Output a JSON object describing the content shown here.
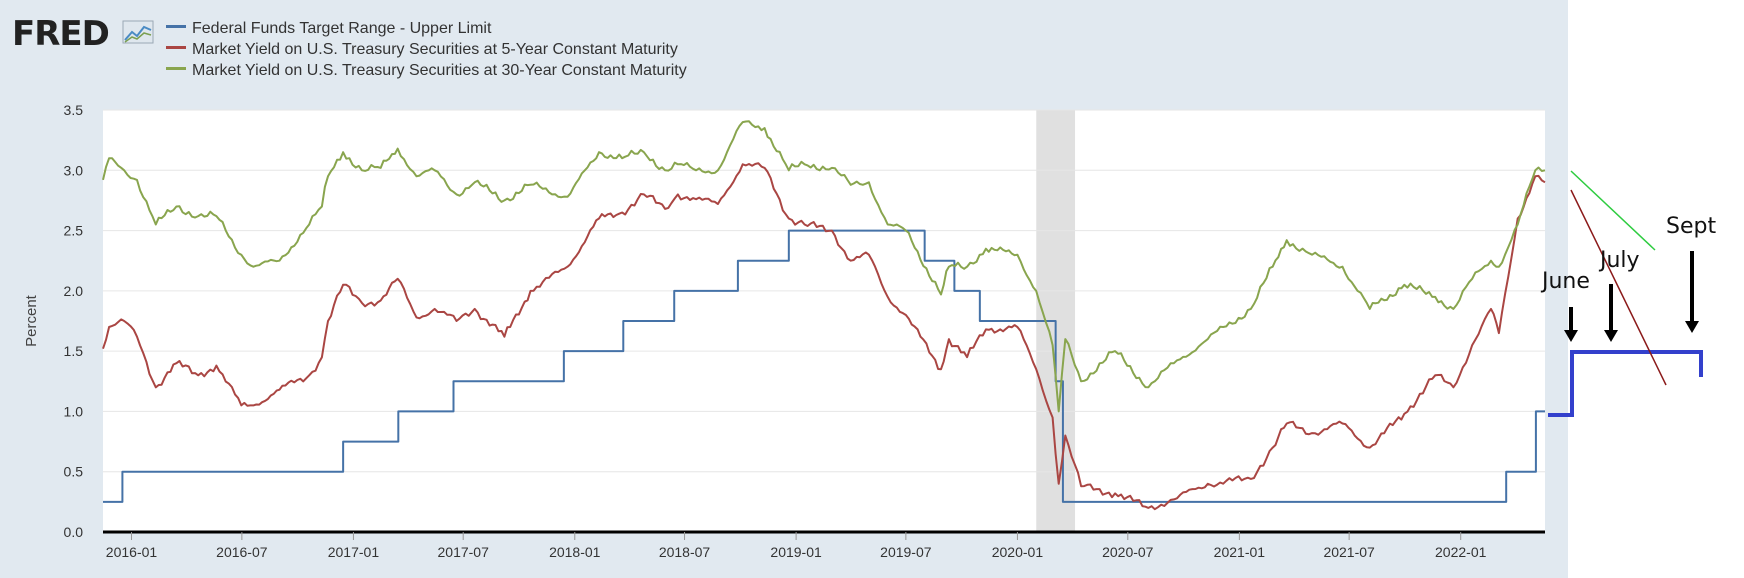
{
  "logo": {
    "text": "FRED",
    "mark": "chart-line-icon"
  },
  "colors": {
    "fed_funds": "#4572a7",
    "yield_5y": "#aa4643",
    "yield_30y": "#89a54e",
    "recession": "#e0e0e0",
    "annotation_blue": "#3340cc"
  },
  "chart_data": {
    "type": "line",
    "title": "",
    "ylabel": "Percent",
    "xlabel": "",
    "ylim": [
      0.0,
      3.5
    ],
    "xlim": [
      "2015-11-15",
      "2022-05-20"
    ],
    "y_ticks": [
      "0.0",
      "0.5",
      "1.0",
      "1.5",
      "2.0",
      "2.5",
      "3.0",
      "3.5"
    ],
    "x_ticks": [
      "2016-01",
      "2016-07",
      "2017-01",
      "2017-07",
      "2018-01",
      "2018-07",
      "2019-01",
      "2019-07",
      "2020-01",
      "2020-07",
      "2021-01",
      "2021-07",
      "2022-01"
    ],
    "recession": {
      "start": "2020-02-01",
      "end": "2020-04-05"
    },
    "grid": true,
    "legend_position": "top-left",
    "series": [
      {
        "name": "Federal Funds Target Range - Upper Limit",
        "step": true,
        "points": [
          [
            "2015-11-15",
            0.25
          ],
          [
            "2015-12-17",
            0.5
          ],
          [
            "2016-12-15",
            0.75
          ],
          [
            "2017-03-16",
            1.0
          ],
          [
            "2017-06-15",
            1.25
          ],
          [
            "2017-12-14",
            1.5
          ],
          [
            "2018-03-22",
            1.75
          ],
          [
            "2018-06-14",
            2.0
          ],
          [
            "2018-09-27",
            2.25
          ],
          [
            "2018-12-20",
            2.5
          ],
          [
            "2019-08-01",
            2.25
          ],
          [
            "2019-09-19",
            2.0
          ],
          [
            "2019-10-31",
            1.75
          ],
          [
            "2020-03-04",
            1.25
          ],
          [
            "2020-03-16",
            0.25
          ],
          [
            "2022-03-17",
            0.5
          ],
          [
            "2022-05-05",
            1.0
          ],
          [
            "2022-05-20",
            1.0
          ]
        ]
      },
      {
        "name": "Market Yield on U.S. Treasury Securities at 5-Year Constant Maturity",
        "points": [
          [
            "2015-11-15",
            1.52
          ],
          [
            "2015-11-25",
            1.7
          ],
          [
            "2015-12-20",
            1.75
          ],
          [
            "2016-01-10",
            1.62
          ],
          [
            "2016-02-10",
            1.2
          ],
          [
            "2016-03-15",
            1.4
          ],
          [
            "2016-04-20",
            1.3
          ],
          [
            "2016-05-20",
            1.38
          ],
          [
            "2016-06-30",
            1.05
          ],
          [
            "2016-07-20",
            1.05
          ],
          [
            "2016-09-01",
            1.18
          ],
          [
            "2016-10-20",
            1.3
          ],
          [
            "2016-11-10",
            1.45
          ],
          [
            "2016-11-20",
            1.75
          ],
          [
            "2016-12-15",
            2.05
          ],
          [
            "2017-01-15",
            1.9
          ],
          [
            "2017-02-15",
            1.92
          ],
          [
            "2017-03-15",
            2.1
          ],
          [
            "2017-04-15",
            1.78
          ],
          [
            "2017-05-15",
            1.85
          ],
          [
            "2017-06-20",
            1.75
          ],
          [
            "2017-07-20",
            1.85
          ],
          [
            "2017-09-07",
            1.62
          ],
          [
            "2017-10-20",
            2.0
          ],
          [
            "2017-12-20",
            2.2
          ],
          [
            "2018-02-10",
            2.6
          ],
          [
            "2018-03-20",
            2.65
          ],
          [
            "2018-04-25",
            2.8
          ],
          [
            "2018-05-30",
            2.68
          ],
          [
            "2018-06-20",
            2.8
          ],
          [
            "2018-07-20",
            2.76
          ],
          [
            "2018-08-25",
            2.72
          ],
          [
            "2018-10-05",
            3.05
          ],
          [
            "2018-11-10",
            3.02
          ],
          [
            "2018-12-20",
            2.6
          ],
          [
            "2019-01-15",
            2.55
          ],
          [
            "2019-03-01",
            2.5
          ],
          [
            "2019-04-01",
            2.25
          ],
          [
            "2019-05-01",
            2.3
          ],
          [
            "2019-06-01",
            1.95
          ],
          [
            "2019-07-01",
            1.8
          ],
          [
            "2019-08-28",
            1.35
          ],
          [
            "2019-09-10",
            1.6
          ],
          [
            "2019-10-10",
            1.45
          ],
          [
            "2019-11-10",
            1.68
          ],
          [
            "2020-01-01",
            1.7
          ],
          [
            "2020-02-01",
            1.35
          ],
          [
            "2020-02-28",
            0.95
          ],
          [
            "2020-03-09",
            0.4
          ],
          [
            "2020-03-20",
            0.8
          ],
          [
            "2020-04-15",
            0.38
          ],
          [
            "2020-06-10",
            0.32
          ],
          [
            "2020-08-04",
            0.2
          ],
          [
            "2020-09-15",
            0.27
          ],
          [
            "2020-11-10",
            0.4
          ],
          [
            "2021-01-20",
            0.44
          ],
          [
            "2021-02-25",
            0.7
          ],
          [
            "2021-03-20",
            0.9
          ],
          [
            "2021-05-01",
            0.82
          ],
          [
            "2021-06-20",
            0.9
          ],
          [
            "2021-08-04",
            0.7
          ],
          [
            "2021-09-30",
            0.98
          ],
          [
            "2021-11-20",
            1.3
          ],
          [
            "2021-12-20",
            1.2
          ],
          [
            "2022-01-20",
            1.55
          ],
          [
            "2022-02-20",
            1.85
          ],
          [
            "2022-03-05",
            1.65
          ],
          [
            "2022-04-05",
            2.6
          ],
          [
            "2022-05-04",
            2.95
          ],
          [
            "2022-05-20",
            2.9
          ]
        ]
      },
      {
        "name": "Market Yield on U.S. Treasury Securities at 30-Year Constant Maturity",
        "points": [
          [
            "2015-11-15",
            2.92
          ],
          [
            "2015-11-25",
            3.1
          ],
          [
            "2015-12-20",
            3.0
          ],
          [
            "2016-01-10",
            2.92
          ],
          [
            "2016-02-10",
            2.55
          ],
          [
            "2016-03-15",
            2.7
          ],
          [
            "2016-04-20",
            2.62
          ],
          [
            "2016-05-20",
            2.62
          ],
          [
            "2016-06-30",
            2.3
          ],
          [
            "2016-07-20",
            2.2
          ],
          [
            "2016-09-01",
            2.25
          ],
          [
            "2016-10-20",
            2.55
          ],
          [
            "2016-11-10",
            2.7
          ],
          [
            "2016-11-20",
            2.95
          ],
          [
            "2016-12-15",
            3.15
          ],
          [
            "2017-01-15",
            3.0
          ],
          [
            "2017-02-15",
            3.02
          ],
          [
            "2017-03-15",
            3.18
          ],
          [
            "2017-04-15",
            2.95
          ],
          [
            "2017-05-15",
            3.0
          ],
          [
            "2017-06-20",
            2.8
          ],
          [
            "2017-07-20",
            2.9
          ],
          [
            "2017-09-07",
            2.75
          ],
          [
            "2017-10-20",
            2.88
          ],
          [
            "2017-12-20",
            2.78
          ],
          [
            "2018-02-10",
            3.15
          ],
          [
            "2018-03-20",
            3.1
          ],
          [
            "2018-04-25",
            3.15
          ],
          [
            "2018-05-30",
            3.0
          ],
          [
            "2018-06-20",
            3.05
          ],
          [
            "2018-07-20",
            3.0
          ],
          [
            "2018-08-25",
            3.0
          ],
          [
            "2018-10-05",
            3.4
          ],
          [
            "2018-11-10",
            3.35
          ],
          [
            "2018-12-20",
            3.0
          ],
          [
            "2019-01-15",
            3.05
          ],
          [
            "2019-03-01",
            3.02
          ],
          [
            "2019-04-01",
            2.88
          ],
          [
            "2019-05-01",
            2.9
          ],
          [
            "2019-06-01",
            2.55
          ],
          [
            "2019-07-01",
            2.5
          ],
          [
            "2019-08-28",
            1.97
          ],
          [
            "2019-09-10",
            2.2
          ],
          [
            "2019-10-10",
            2.2
          ],
          [
            "2019-11-10",
            2.35
          ],
          [
            "2020-01-01",
            2.3
          ],
          [
            "2020-02-01",
            2.0
          ],
          [
            "2020-02-28",
            1.55
          ],
          [
            "2020-03-09",
            1.0
          ],
          [
            "2020-03-20",
            1.6
          ],
          [
            "2020-04-15",
            1.25
          ],
          [
            "2020-06-10",
            1.5
          ],
          [
            "2020-08-04",
            1.2
          ],
          [
            "2020-09-15",
            1.4
          ],
          [
            "2020-11-10",
            1.6
          ],
          [
            "2021-01-20",
            1.85
          ],
          [
            "2021-02-25",
            2.2
          ],
          [
            "2021-03-20",
            2.42
          ],
          [
            "2021-05-01",
            2.3
          ],
          [
            "2021-06-20",
            2.2
          ],
          [
            "2021-08-04",
            1.85
          ],
          [
            "2021-09-30",
            2.05
          ],
          [
            "2021-11-20",
            1.95
          ],
          [
            "2021-12-20",
            1.85
          ],
          [
            "2022-01-20",
            2.1
          ],
          [
            "2022-02-20",
            2.25
          ],
          [
            "2022-03-05",
            2.2
          ],
          [
            "2022-04-05",
            2.55
          ],
          [
            "2022-05-04",
            3.0
          ],
          [
            "2022-05-20",
            3.0
          ]
        ]
      }
    ]
  },
  "annotations": {
    "labels": [
      "June",
      "July",
      "Sept"
    ]
  }
}
